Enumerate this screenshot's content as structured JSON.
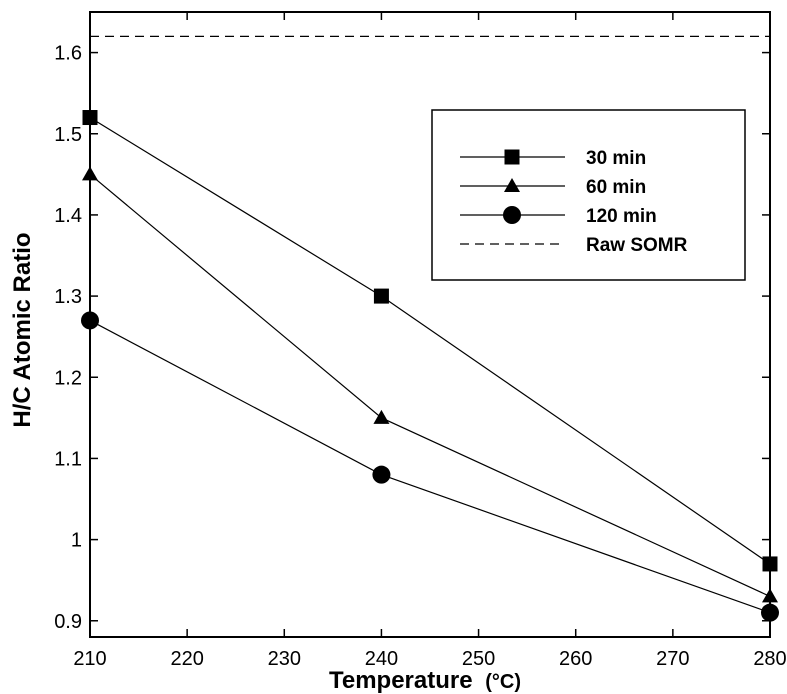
{
  "chart_data": {
    "type": "line",
    "title": "",
    "xlabel": "Temperature (°C)",
    "xlabel_main": "Temperature",
    "xlabel_unit": "(°C)",
    "ylabel": "H/C Atomic Ratio",
    "x": [
      210,
      240,
      280
    ],
    "xlim": [
      210,
      280
    ],
    "ylim": [
      0.88,
      1.65
    ],
    "xticks": [
      210,
      220,
      230,
      240,
      250,
      260,
      270,
      280
    ],
    "yticks": [
      0.9,
      1.0,
      1.1,
      1.2,
      1.3,
      1.4,
      1.5,
      1.6
    ],
    "ytick_labels": [
      "0.9",
      "1",
      "1.1",
      "1.2",
      "1.3",
      "1.4",
      "1.5",
      "1.6"
    ],
    "grid": false,
    "legend_position": "upper-right",
    "series": [
      {
        "name": "30 min",
        "marker": "square",
        "values": [
          1.52,
          1.3,
          0.97
        ]
      },
      {
        "name": "60 min",
        "marker": "triangle",
        "values": [
          1.45,
          1.15,
          0.93
        ]
      },
      {
        "name": "120 min",
        "marker": "circle",
        "values": [
          1.27,
          1.08,
          0.91
        ]
      }
    ],
    "reference_line": {
      "name": "Raw SOMR",
      "style": "dashed",
      "value": 1.62
    },
    "colors": {
      "line": "#000000",
      "marker": "#000000",
      "background": "#ffffff"
    }
  }
}
